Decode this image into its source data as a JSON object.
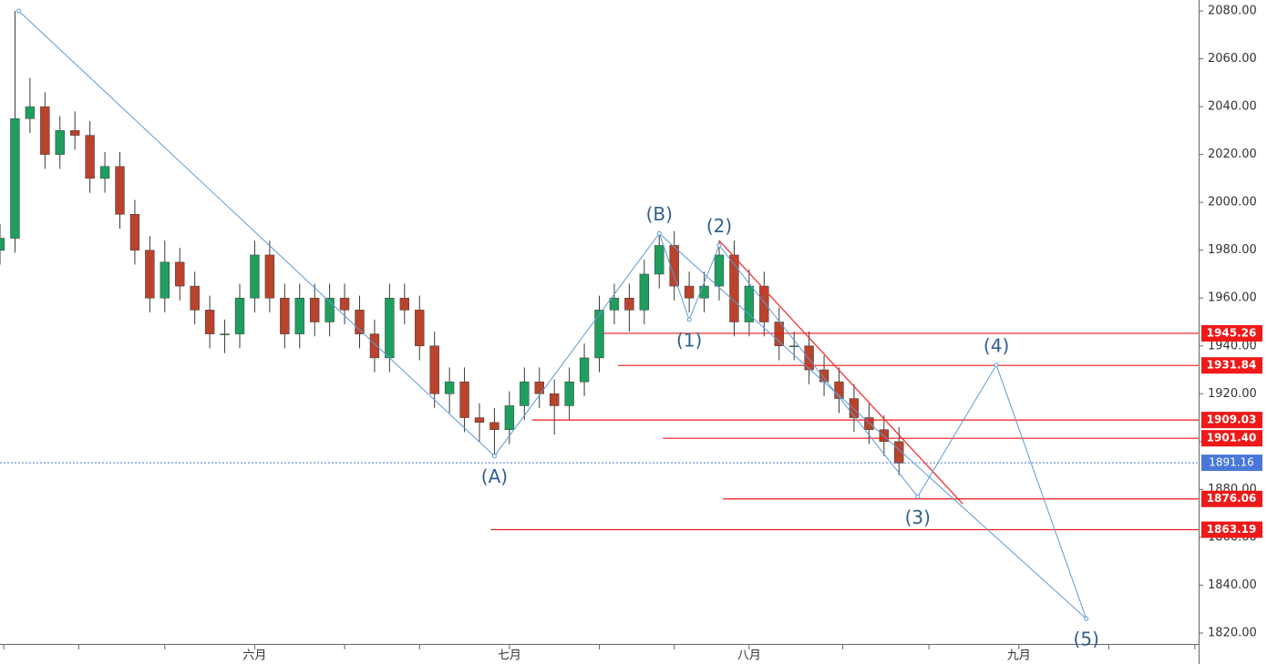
{
  "chart_data": {
    "type": "candlestick",
    "x": [
      0,
      4,
      8,
      12,
      16,
      20,
      24,
      28,
      32,
      36,
      40,
      44,
      48,
      52,
      56,
      60,
      64,
      68,
      72,
      76,
      80,
      84,
      88,
      92,
      96,
      100,
      104,
      108,
      112,
      116,
      120,
      124,
      128,
      132,
      136,
      140,
      144,
      148,
      152,
      156,
      160,
      164,
      168,
      172,
      176,
      180,
      184,
      188,
      192,
      196,
      200,
      204,
      208,
      212,
      216,
      220,
      224,
      228,
      232,
      236,
      240
    ],
    "open": [
      1980,
      1985,
      2035,
      2040,
      2020,
      2030,
      2028,
      2010,
      2015,
      1995,
      1980,
      1960,
      1975,
      1965,
      1955,
      1945,
      1945,
      1960,
      1978,
      1960,
      1945,
      1960,
      1950,
      1960,
      1955,
      1945,
      1935,
      1960,
      1955,
      1940,
      1920,
      1925,
      1910,
      1908,
      1905,
      1915,
      1925,
      1920,
      1915,
      1925,
      1935,
      1955,
      1960,
      1955,
      1970,
      1982,
      1965,
      1960,
      1965,
      1978,
      1950,
      1965,
      1950,
      1940,
      1940,
      1930,
      1925,
      1918,
      1910,
      1905,
      1900
    ],
    "high": [
      1991,
      2080,
      2052,
      2046,
      2036,
      2038,
      2034,
      2021,
      2021,
      2001,
      1986,
      1984,
      1981,
      1971,
      1961,
      1951,
      1966,
      1984,
      1984,
      1966,
      1966,
      1966,
      1966,
      1966,
      1961,
      1951,
      1966,
      1966,
      1961,
      1946,
      1931,
      1931,
      1916,
      1914,
      1921,
      1931,
      1931,
      1926,
      1931,
      1941,
      1961,
      1966,
      1966,
      1976,
      1988,
      1988,
      1971,
      1971,
      1984,
      1984,
      1972,
      1971,
      1956,
      1946,
      1946,
      1936,
      1931,
      1924,
      1916,
      1911,
      1906
    ],
    "low": [
      1974,
      1979,
      2029,
      2014,
      2014,
      2022,
      2004,
      2004,
      1989,
      1974,
      1954,
      1954,
      1959,
      1949,
      1939,
      1937,
      1939,
      1954,
      1954,
      1939,
      1939,
      1944,
      1944,
      1949,
      1939,
      1929,
      1929,
      1949,
      1934,
      1914,
      1912,
      1904,
      1900,
      1894,
      1899,
      1909,
      1914,
      1903,
      1909,
      1919,
      1929,
      1949,
      1946,
      1949,
      1964,
      1959,
      1954,
      1954,
      1959,
      1944,
      1944,
      1944,
      1934,
      1934,
      1924,
      1919,
      1912,
      1904,
      1899,
      1894,
      1886
    ],
    "close": [
      1985,
      2035,
      2040,
      2020,
      2030,
      2028,
      2010,
      2015,
      1995,
      1980,
      1960,
      1975,
      1965,
      1955,
      1945,
      1945,
      1960,
      1978,
      1960,
      1945,
      1960,
      1950,
      1960,
      1955,
      1945,
      1935,
      1960,
      1955,
      1940,
      1920,
      1925,
      1910,
      1908,
      1905,
      1915,
      1925,
      1920,
      1915,
      1925,
      1935,
      1955,
      1960,
      1955,
      1970,
      1982,
      1965,
      1960,
      1965,
      1978,
      1950,
      1965,
      1950,
      1940,
      1940,
      1930,
      1925,
      1918,
      1910,
      1905,
      1900,
      1891
    ],
    "up_color": "#1f9e5f",
    "down_color": "#b9432c",
    "xlim": [
      0,
      320
    ],
    "xticks": [
      {
        "value": 1,
        "label": null
      },
      {
        "value": 21,
        "label": null
      },
      {
        "value": 44,
        "label": null
      },
      {
        "value": 68,
        "label": "六月"
      },
      {
        "value": 92,
        "label": null
      },
      {
        "value": 112,
        "label": null
      },
      {
        "value": 136,
        "label": "七月"
      },
      {
        "value": 160,
        "label": null
      },
      {
        "value": 180,
        "label": null
      },
      {
        "value": 200,
        "label": "八月"
      },
      {
        "value": 225,
        "label": null
      },
      {
        "value": 248,
        "label": null
      },
      {
        "value": 272,
        "label": "九月"
      },
      {
        "value": 296,
        "label": null
      },
      {
        "value": 319,
        "label": null
      }
    ],
    "ylim": [
      1820,
      2080
    ],
    "yticks": [
      {
        "value": 1820,
        "label": "1820.00"
      },
      {
        "value": 1840,
        "label": "1840.00"
      },
      {
        "value": 1860,
        "label": "1860.00"
      },
      {
        "value": 1880,
        "label": "1880.00"
      },
      {
        "value": 1900,
        "label": "1900.00"
      },
      {
        "value": 1920,
        "label": "1920.00"
      },
      {
        "value": 1940,
        "label": "1940.00"
      },
      {
        "value": 1960,
        "label": "1960.00"
      },
      {
        "value": 1980,
        "label": "1980.00"
      },
      {
        "value": 2000,
        "label": "2000.00"
      },
      {
        "value": 2020,
        "label": "2020.00"
      },
      {
        "value": 2040,
        "label": "2040.00"
      },
      {
        "value": 2060,
        "label": "2060.00"
      },
      {
        "value": 2080,
        "label": "2080.00"
      }
    ],
    "waves": {
      "color": "#5b9bd5",
      "labels": [
        null,
        "(A)",
        "(B)",
        "(1)",
        "(2)",
        "(3)",
        "(4)",
        "(5)"
      ],
      "x": [
        5,
        132,
        176,
        184,
        192,
        245,
        266,
        290
      ],
      "y": [
        2080,
        1894,
        1987,
        1951,
        1982,
        1877,
        1932,
        1826
      ]
    },
    "projection": {
      "x": [
        176,
        290
      ],
      "y": [
        1987,
        1826
      ]
    },
    "trend_line": {
      "color": "#f03030",
      "x": [
        192,
        257
      ],
      "y": [
        1984,
        1874
      ]
    },
    "levels": {
      "color": "#f01818",
      "values": [
        1945.26,
        1931.84,
        1909.03,
        1901.4,
        1876.06,
        1863.19
      ],
      "value_labels": [
        "1945.26",
        "1931.84",
        "1909.03",
        "1901.40",
        "1876.06",
        "1863.19"
      ],
      "start_x": [
        161,
        165,
        142,
        177,
        193,
        131
      ]
    },
    "last_price": {
      "value": 1891.16,
      "label": "1891.16",
      "color": "#4a78d8"
    }
  }
}
